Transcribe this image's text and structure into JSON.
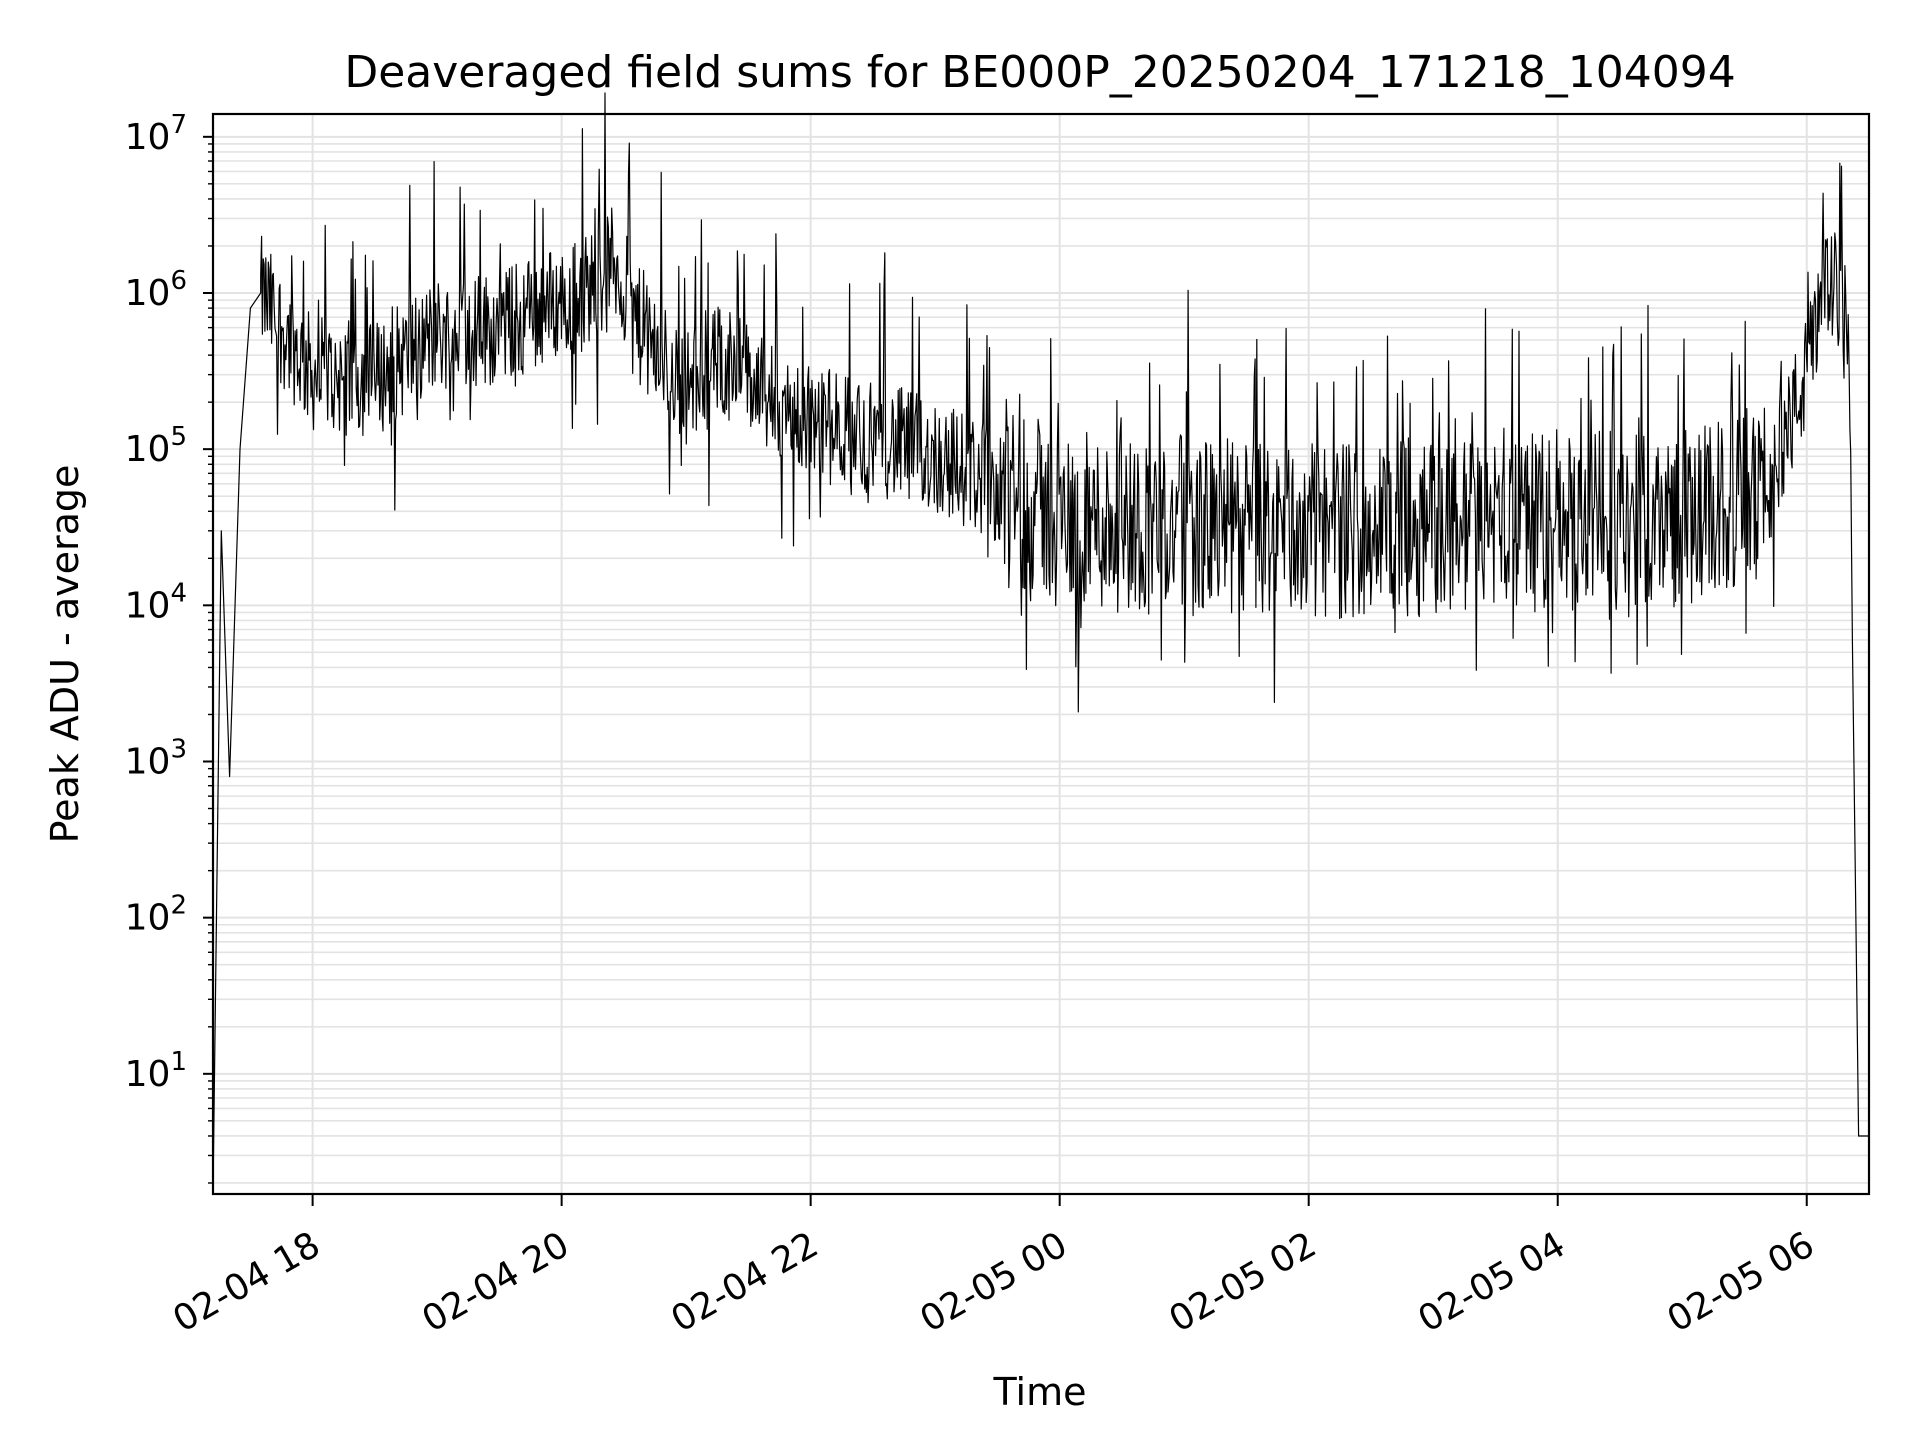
{
  "chart_data": {
    "type": "line",
    "title": "Deaveraged field sums for BE000P_20250204_171218_104094",
    "xlabel": "Time",
    "ylabel": "Peak ADU - average",
    "y_scale": "log",
    "ylim": [
      1.7,
      14000000
    ],
    "xlim": [
      "2025-02-04 17:12",
      "2025-02-05 06:30"
    ],
    "grid": true,
    "x_ticks": [
      "02-04 18",
      "02-04 20",
      "02-04 22",
      "02-05 00",
      "02-05 02",
      "02-05 04",
      "02-05 06"
    ],
    "y_ticks": [
      {
        "base": "10",
        "exp": "1",
        "value": 10
      },
      {
        "base": "10",
        "exp": "2",
        "value": 100
      },
      {
        "base": "10",
        "exp": "3",
        "value": 1000
      },
      {
        "base": "10",
        "exp": "4",
        "value": 10000
      },
      {
        "base": "10",
        "exp": "5",
        "value": 100000
      },
      {
        "base": "10",
        "exp": "6",
        "value": 1000000
      },
      {
        "base": "10",
        "exp": "7",
        "value": 10000000
      }
    ],
    "line_color": "#000000",
    "series": [
      {
        "x": [
          "2025-02-04 17:12",
          "2025-02-04 17:16",
          "2025-02-04 17:20",
          "2025-02-04 17:25",
          "2025-02-04 17:30",
          "2025-02-04 17:35",
          "2025-02-04 17:45",
          "2025-02-04 18:00",
          "2025-02-04 18:30",
          "2025-02-04 19:00",
          "2025-02-04 19:30",
          "2025-02-04 19:50",
          "2025-02-04 20:10",
          "2025-02-04 20:25",
          "2025-02-04 20:40",
          "2025-02-04 21:00",
          "2025-02-04 21:20",
          "2025-02-04 21:40",
          "2025-02-04 22:00",
          "2025-02-04 22:30",
          "2025-02-04 23:00",
          "2025-02-04 23:30",
          "2025-02-05 00:00",
          "2025-02-05 01:00",
          "2025-02-05 02:00",
          "2025-02-05 03:00",
          "2025-02-05 04:00",
          "2025-02-05 05:00",
          "2025-02-05 05:40",
          "2025-02-05 06:00",
          "2025-02-05 06:10",
          "2025-02-05 06:20",
          "2025-02-05 06:25",
          "2025-02-05 06:30"
        ],
        "values": [
          1.7,
          30000,
          800,
          100000,
          800000,
          1000000,
          600000,
          300000,
          280000,
          550000,
          600000,
          800000,
          1000000,
          1600000,
          500000,
          250000,
          400000,
          200000,
          150000,
          120000,
          90000,
          60000,
          35000,
          32000,
          30000,
          32000,
          34000,
          36000,
          50000,
          300000,
          1200000,
          800000,
          4,
          4
        ]
      }
    ]
  }
}
